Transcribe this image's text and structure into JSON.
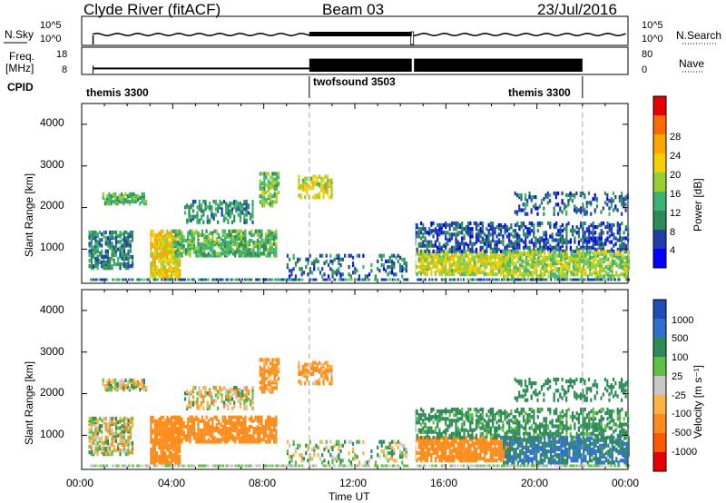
{
  "header": {
    "station": "Clyde River (fitACF)",
    "beam": "Beam 03",
    "date": "23/Jul/2016"
  },
  "nsky_panel": {
    "left_label": "N.Sky",
    "right_label": "N.Search",
    "left_ticks": [
      "10^5",
      "10^0"
    ],
    "right_ticks": [
      "10^5",
      "10^0"
    ]
  },
  "freq_panel": {
    "left_label_1": "Freq.",
    "left_label_2": "[MHz]",
    "right_label": "Nave",
    "left_ticks": [
      "18",
      "8"
    ],
    "right_ticks": [
      "80",
      "0"
    ],
    "segments": [
      {
        "start_h": 0.5,
        "end_h": 10.0,
        "level": 0.2
      },
      {
        "start_h": 10.0,
        "end_h": 14.5,
        "level": 0.55
      },
      {
        "start_h": 14.6,
        "end_h": 22.0,
        "level": 0.55
      }
    ]
  },
  "cpid_panel": {
    "label": "CPID",
    "modes": [
      {
        "name": "themis 3300",
        "start_h": 0.0,
        "end_h": 10.0,
        "align": "left"
      },
      {
        "name": "twofsound 3503",
        "start_h": 10.0,
        "end_h": 22.0,
        "align": "left"
      },
      {
        "name": "themis 3300",
        "start_h": 10.0,
        "end_h": 22.0,
        "align": "right"
      }
    ]
  },
  "x_axis": {
    "title": "Time UT",
    "ticks": [
      "00:00",
      "04:00",
      "08:00",
      "12:00",
      "16:00",
      "20:00",
      "00:00"
    ],
    "range_h": [
      0,
      24
    ]
  },
  "mode_change_hours": [
    10.0,
    22.0
  ],
  "data_gap_hour": 14.5,
  "power_panel": {
    "ylabel": "Slant Range [km]",
    "yticks": [
      "1000",
      "2000",
      "3000",
      "4000"
    ],
    "ylim": [
      180,
      4500
    ],
    "colorbar_title": "Power [dB]",
    "colorbar_ticks": [
      "4",
      "8",
      "12",
      "16",
      "20",
      "24",
      "28"
    ],
    "colors": [
      "#0000ff",
      "#1e3fa8",
      "#2e8b57",
      "#3cb371",
      "#9acd32",
      "#f5d000",
      "#ffa500",
      "#ff6a00",
      "#e60000"
    ]
  },
  "velocity_panel": {
    "ylabel": "Slant Range [km]",
    "yticks": [
      "1000",
      "2000",
      "3000",
      "4000"
    ],
    "ylim": [
      180,
      4500
    ],
    "colorbar_title": "Velocity [m s⁻¹]",
    "colorbar_ticks": [
      "1000",
      "500",
      "100",
      "25",
      "-25",
      "-100",
      "-500",
      "-1000"
    ],
    "colors": [
      "#1f4db8",
      "#2f6fcf",
      "#2e8b57",
      "#5fc043",
      "#c8c8c8",
      "#ffb347",
      "#ff8c1a",
      "#ff5a00",
      "#e60000"
    ]
  },
  "chart_data": {
    "type": "heatmap",
    "title": "Clyde River (fitACF) Beam 03 23/Jul/2016",
    "xlabel": "Time UT",
    "ylabel": "Slant Range [km]",
    "xlim_hours": [
      0,
      24
    ],
    "ylim_km": [
      180,
      4500
    ],
    "scatter_regions": [
      {
        "t0": 0.3,
        "t1": 2.2,
        "r0": 500,
        "r1": 1400,
        "power": 10,
        "velocity": 0,
        "density": 0.55
      },
      {
        "t0": 0.9,
        "t1": 2.8,
        "r0": 2050,
        "r1": 2300,
        "power": 14,
        "velocity": 0,
        "density": 0.6
      },
      {
        "t0": 3.0,
        "t1": 4.3,
        "r0": 300,
        "r1": 1400,
        "power": 22,
        "velocity": -300,
        "density": 0.7
      },
      {
        "t0": 4.0,
        "t1": 8.5,
        "r0": 800,
        "r1": 1400,
        "power": 14,
        "velocity": -250,
        "density": 0.6
      },
      {
        "t0": 4.5,
        "t1": 7.5,
        "r0": 1600,
        "r1": 2100,
        "power": 11,
        "velocity": 0,
        "density": 0.35
      },
      {
        "t0": 7.8,
        "t1": 8.7,
        "r0": 2000,
        "r1": 2800,
        "power": 16,
        "velocity": -200,
        "density": 0.45
      },
      {
        "t0": 9.5,
        "t1": 11.0,
        "r0": 2200,
        "r1": 2700,
        "power": 20,
        "velocity": -150,
        "density": 0.4
      },
      {
        "t0": 9.0,
        "t1": 14.3,
        "r0": 300,
        "r1": 800,
        "power": 8,
        "velocity": 50,
        "density": 0.2
      },
      {
        "t0": 14.6,
        "t1": 18.8,
        "r0": 350,
        "r1": 900,
        "power": 20,
        "velocity": -300,
        "density": 0.65
      },
      {
        "t0": 14.6,
        "t1": 24.0,
        "r0": 900,
        "r1": 1600,
        "power": 7,
        "velocity": 200,
        "density": 0.4
      },
      {
        "t0": 18.5,
        "t1": 24.0,
        "r0": 300,
        "r1": 900,
        "power": 18,
        "velocity": 500,
        "density": 0.55
      },
      {
        "t0": 19.0,
        "t1": 24.0,
        "r0": 1800,
        "r1": 2300,
        "power": 8,
        "velocity": 300,
        "density": 0.25
      }
    ],
    "ground_scatter_band_km": [
      200,
      300
    ]
  }
}
